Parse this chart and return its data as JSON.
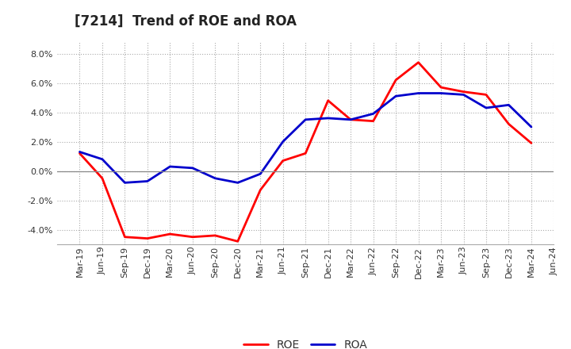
{
  "title": "[7214]  Trend of ROE and ROA",
  "labels": [
    "Mar-19",
    "Jun-19",
    "Sep-19",
    "Dec-19",
    "Mar-20",
    "Jun-20",
    "Sep-20",
    "Dec-20",
    "Mar-21",
    "Jun-21",
    "Sep-21",
    "Dec-21",
    "Mar-22",
    "Jun-22",
    "Sep-22",
    "Dec-22",
    "Mar-23",
    "Jun-23",
    "Sep-23",
    "Dec-23",
    "Mar-24",
    "Jun-24"
  ],
  "ROE": [
    1.2,
    -0.5,
    -4.5,
    -4.6,
    -4.3,
    -4.5,
    -4.4,
    -4.8,
    -1.3,
    0.7,
    1.2,
    4.8,
    3.5,
    3.4,
    6.2,
    7.4,
    5.7,
    5.4,
    5.2,
    3.2,
    1.9,
    null
  ],
  "ROA": [
    1.3,
    0.8,
    -0.8,
    -0.7,
    0.3,
    0.2,
    -0.5,
    -0.8,
    -0.2,
    2.0,
    3.5,
    3.6,
    3.5,
    3.9,
    5.1,
    5.3,
    5.3,
    5.2,
    4.3,
    4.5,
    3.0,
    null
  ],
  "roe_color": "#FF0000",
  "roa_color": "#0000CC",
  "ylim": [
    -5.0,
    8.8
  ],
  "yticks": [
    -4.0,
    -2.0,
    0.0,
    2.0,
    4.0,
    6.0,
    8.0
  ],
  "bg_color": "#ffffff",
  "grid_color": "#aaaaaa",
  "linewidth": 2.0,
  "title_fontsize": 12,
  "tick_fontsize": 8,
  "legend_fontsize": 10
}
